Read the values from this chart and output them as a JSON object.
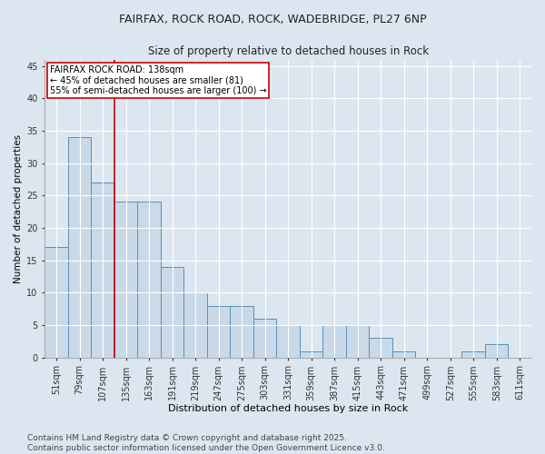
{
  "title_line1": "FAIRFAX, ROCK ROAD, ROCK, WADEBRIDGE, PL27 6NP",
  "title_line2": "Size of property relative to detached houses in Rock",
  "xlabel": "Distribution of detached houses by size in Rock",
  "ylabel": "Number of detached properties",
  "categories": [
    "51sqm",
    "79sqm",
    "107sqm",
    "135sqm",
    "163sqm",
    "191sqm",
    "219sqm",
    "247sqm",
    "275sqm",
    "303sqm",
    "331sqm",
    "359sqm",
    "387sqm",
    "415sqm",
    "443sqm",
    "471sqm",
    "499sqm",
    "527sqm",
    "555sqm",
    "583sqm",
    "611sqm"
  ],
  "values": [
    17,
    34,
    27,
    24,
    24,
    14,
    10,
    8,
    8,
    6,
    5,
    1,
    5,
    5,
    3,
    1,
    0,
    0,
    1,
    2,
    0
  ],
  "bar_color": "#c9d9e8",
  "bar_edge_color": "#5a8db5",
  "background_color": "#dce6f0",
  "grid_color": "#ffffff",
  "annotation_text": "FAIRFAX ROCK ROAD: 138sqm\n← 45% of detached houses are smaller (81)\n55% of semi-detached houses are larger (100) →",
  "annotation_box_color": "#ffffff",
  "annotation_box_edge_color": "#cc0000",
  "vline_x_index": 3,
  "vline_color": "#cc0000",
  "ylim": [
    0,
    46
  ],
  "yticks": [
    0,
    5,
    10,
    15,
    20,
    25,
    30,
    35,
    40,
    45
  ],
  "footer": "Contains HM Land Registry data © Crown copyright and database right 2025.\nContains public sector information licensed under the Open Government Licence v3.0.",
  "title_fontsize": 9,
  "subtitle_fontsize": 8.5,
  "xlabel_fontsize": 8,
  "ylabel_fontsize": 7.5,
  "tick_fontsize": 7,
  "annotation_fontsize": 7,
  "footer_fontsize": 6.5
}
